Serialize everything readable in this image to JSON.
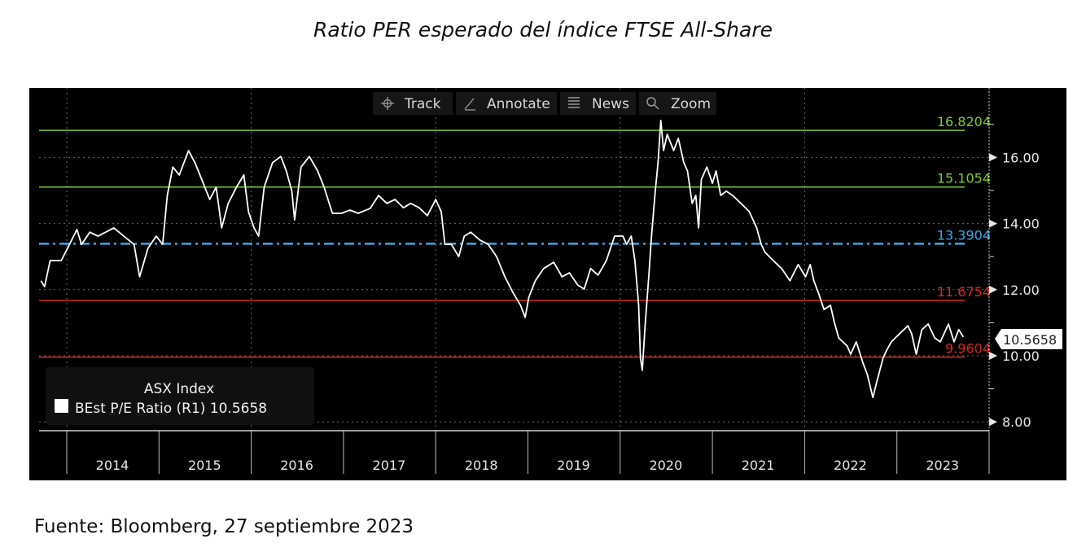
{
  "title": "Ratio PER esperado del índice FTSE All-Share",
  "source": "Fuente: Bloomberg, 27 septiembre 2023",
  "toolbar": {
    "track": "Track",
    "annotate": "Annotate",
    "news": "News",
    "zoom": "Zoom"
  },
  "legend": {
    "title": "ASX Index",
    "series_label": "BEst P/E Ratio  (R1) 10.5658"
  },
  "current_value_label": "10.5658",
  "colors": {
    "background": "#000000",
    "line": "#ffffff",
    "green": "#7ccc2a",
    "blue": "#3aa8e8",
    "red": "#d42a1e"
  },
  "chart_data": {
    "type": "line",
    "title": "Ratio PER esperado del índice FTSE All-Share",
    "xlabel": "",
    "ylabel": "",
    "xlim": [
      2013.6,
      2024.0
    ],
    "ylim": [
      7.7,
      17.6
    ],
    "y_ticks": [
      "8.00",
      "10.00",
      "12.00",
      "14.00",
      "16.00"
    ],
    "y_tick_values": [
      8,
      10,
      12,
      14,
      16
    ],
    "x_tick_labels": [
      "2014",
      "2015",
      "2016",
      "2017",
      "2018",
      "2019",
      "2020",
      "2021",
      "2022",
      "2023"
    ],
    "grid": true,
    "legend_position": "bottom-left",
    "reference_lines": [
      {
        "label": "16.8204",
        "value": 16.8204,
        "color": "green",
        "style": "solid"
      },
      {
        "label": "15.1054",
        "value": 15.1054,
        "color": "green",
        "style": "solid"
      },
      {
        "label": "13.3904",
        "value": 13.3904,
        "color": "blue",
        "style": "dashdot"
      },
      {
        "label": "11.6754",
        "value": 11.6754,
        "color": "red",
        "style": "solid"
      },
      {
        "label": "9.9604",
        "value": 9.9604,
        "color": "red",
        "style": "solid"
      }
    ],
    "series": [
      {
        "name": "BEst P/E Ratio (R1)",
        "last_value": 10.5658,
        "x": [
          2013.72,
          2013.76,
          2013.82,
          2013.94,
          2014.03,
          2014.11,
          2014.16,
          2014.25,
          2014.34,
          2014.51,
          2014.64,
          2014.73,
          2014.79,
          2014.88,
          2014.97,
          2015.04,
          2015.09,
          2015.15,
          2015.22,
          2015.32,
          2015.39,
          2015.48,
          2015.55,
          2015.62,
          2015.68,
          2015.75,
          2015.84,
          2015.92,
          2015.97,
          2016.03,
          2016.08,
          2016.14,
          2016.23,
          2016.32,
          2016.38,
          2016.44,
          2016.47,
          2016.54,
          2016.63,
          2016.72,
          2016.79,
          2016.88,
          2016.98,
          2017.07,
          2017.16,
          2017.29,
          2017.38,
          2017.47,
          2017.56,
          2017.65,
          2017.73,
          2017.82,
          2017.91,
          2018.0,
          2018.06,
          2018.1,
          2018.17,
          2018.25,
          2018.31,
          2018.38,
          2018.48,
          2018.57,
          2018.66,
          2018.75,
          2018.84,
          2018.92,
          2018.97,
          2019.01,
          2019.08,
          2019.17,
          2019.28,
          2019.37,
          2019.45,
          2019.54,
          2019.61,
          2019.68,
          2019.76,
          2019.85,
          2019.94,
          2020.03,
          2020.07,
          2020.12,
          2020.16,
          2020.2,
          2020.22,
          2020.24,
          2020.27,
          2020.31,
          2020.34,
          2020.38,
          2020.41,
          2020.44,
          2020.47,
          2020.51,
          2020.58,
          2020.63,
          2020.69,
          2020.73,
          2020.78,
          2020.82,
          2020.85,
          2020.88,
          2020.94,
          2021.0,
          2021.04,
          2021.09,
          2021.15,
          2021.22,
          2021.31,
          2021.4,
          2021.48,
          2021.53,
          2021.57,
          2021.66,
          2021.75,
          2021.84,
          2021.93,
          2022.01,
          2022.06,
          2022.1,
          2022.15,
          2022.21,
          2022.28,
          2022.32,
          2022.37,
          2022.46,
          2022.5,
          2022.56,
          2022.63,
          2022.68,
          2022.74,
          2022.78,
          2022.85,
          2022.89,
          2022.94,
          2023.03,
          2023.12,
          2023.16,
          2023.21,
          2023.27,
          2023.34,
          2023.41,
          2023.47,
          2023.56,
          2023.62,
          2023.67,
          2023.72
        ],
        "y": [
          12.27,
          12.09,
          12.88,
          12.88,
          13.37,
          13.82,
          13.37,
          13.74,
          13.62,
          13.87,
          13.57,
          13.37,
          12.39,
          13.25,
          13.62,
          13.37,
          14.85,
          15.71,
          15.47,
          16.21,
          15.84,
          15.22,
          14.73,
          15.1,
          13.87,
          14.61,
          15.1,
          15.47,
          14.36,
          13.87,
          13.62,
          15.1,
          15.84,
          16.03,
          15.59,
          14.98,
          14.11,
          15.71,
          16.03,
          15.59,
          15.1,
          14.31,
          14.31,
          14.41,
          14.31,
          14.46,
          14.85,
          14.61,
          14.73,
          14.48,
          14.61,
          14.48,
          14.24,
          14.73,
          14.36,
          13.37,
          13.37,
          13.0,
          13.62,
          13.74,
          13.5,
          13.37,
          13.0,
          12.39,
          11.9,
          11.53,
          11.16,
          11.77,
          12.27,
          12.64,
          12.83,
          12.39,
          12.51,
          12.14,
          12.02,
          12.64,
          12.44,
          12.88,
          13.62,
          13.62,
          13.37,
          13.62,
          12.88,
          11.53,
          9.93,
          9.56,
          10.91,
          12.39,
          13.62,
          14.98,
          15.84,
          17.12,
          16.21,
          16.7,
          16.21,
          16.58,
          15.84,
          15.59,
          14.61,
          14.85,
          13.87,
          15.34,
          15.71,
          15.22,
          15.59,
          14.85,
          14.98,
          14.85,
          14.61,
          14.36,
          13.87,
          13.37,
          13.13,
          12.88,
          12.64,
          12.27,
          12.76,
          12.39,
          12.76,
          12.27,
          11.9,
          11.4,
          11.53,
          11.03,
          10.54,
          10.3,
          10.05,
          10.42,
          9.8,
          9.43,
          8.74,
          9.19,
          9.93,
          10.17,
          10.42,
          10.67,
          10.91,
          10.67,
          10.05,
          10.79,
          10.96,
          10.54,
          10.42,
          10.96,
          10.42,
          10.79,
          10.57
        ]
      }
    ]
  }
}
